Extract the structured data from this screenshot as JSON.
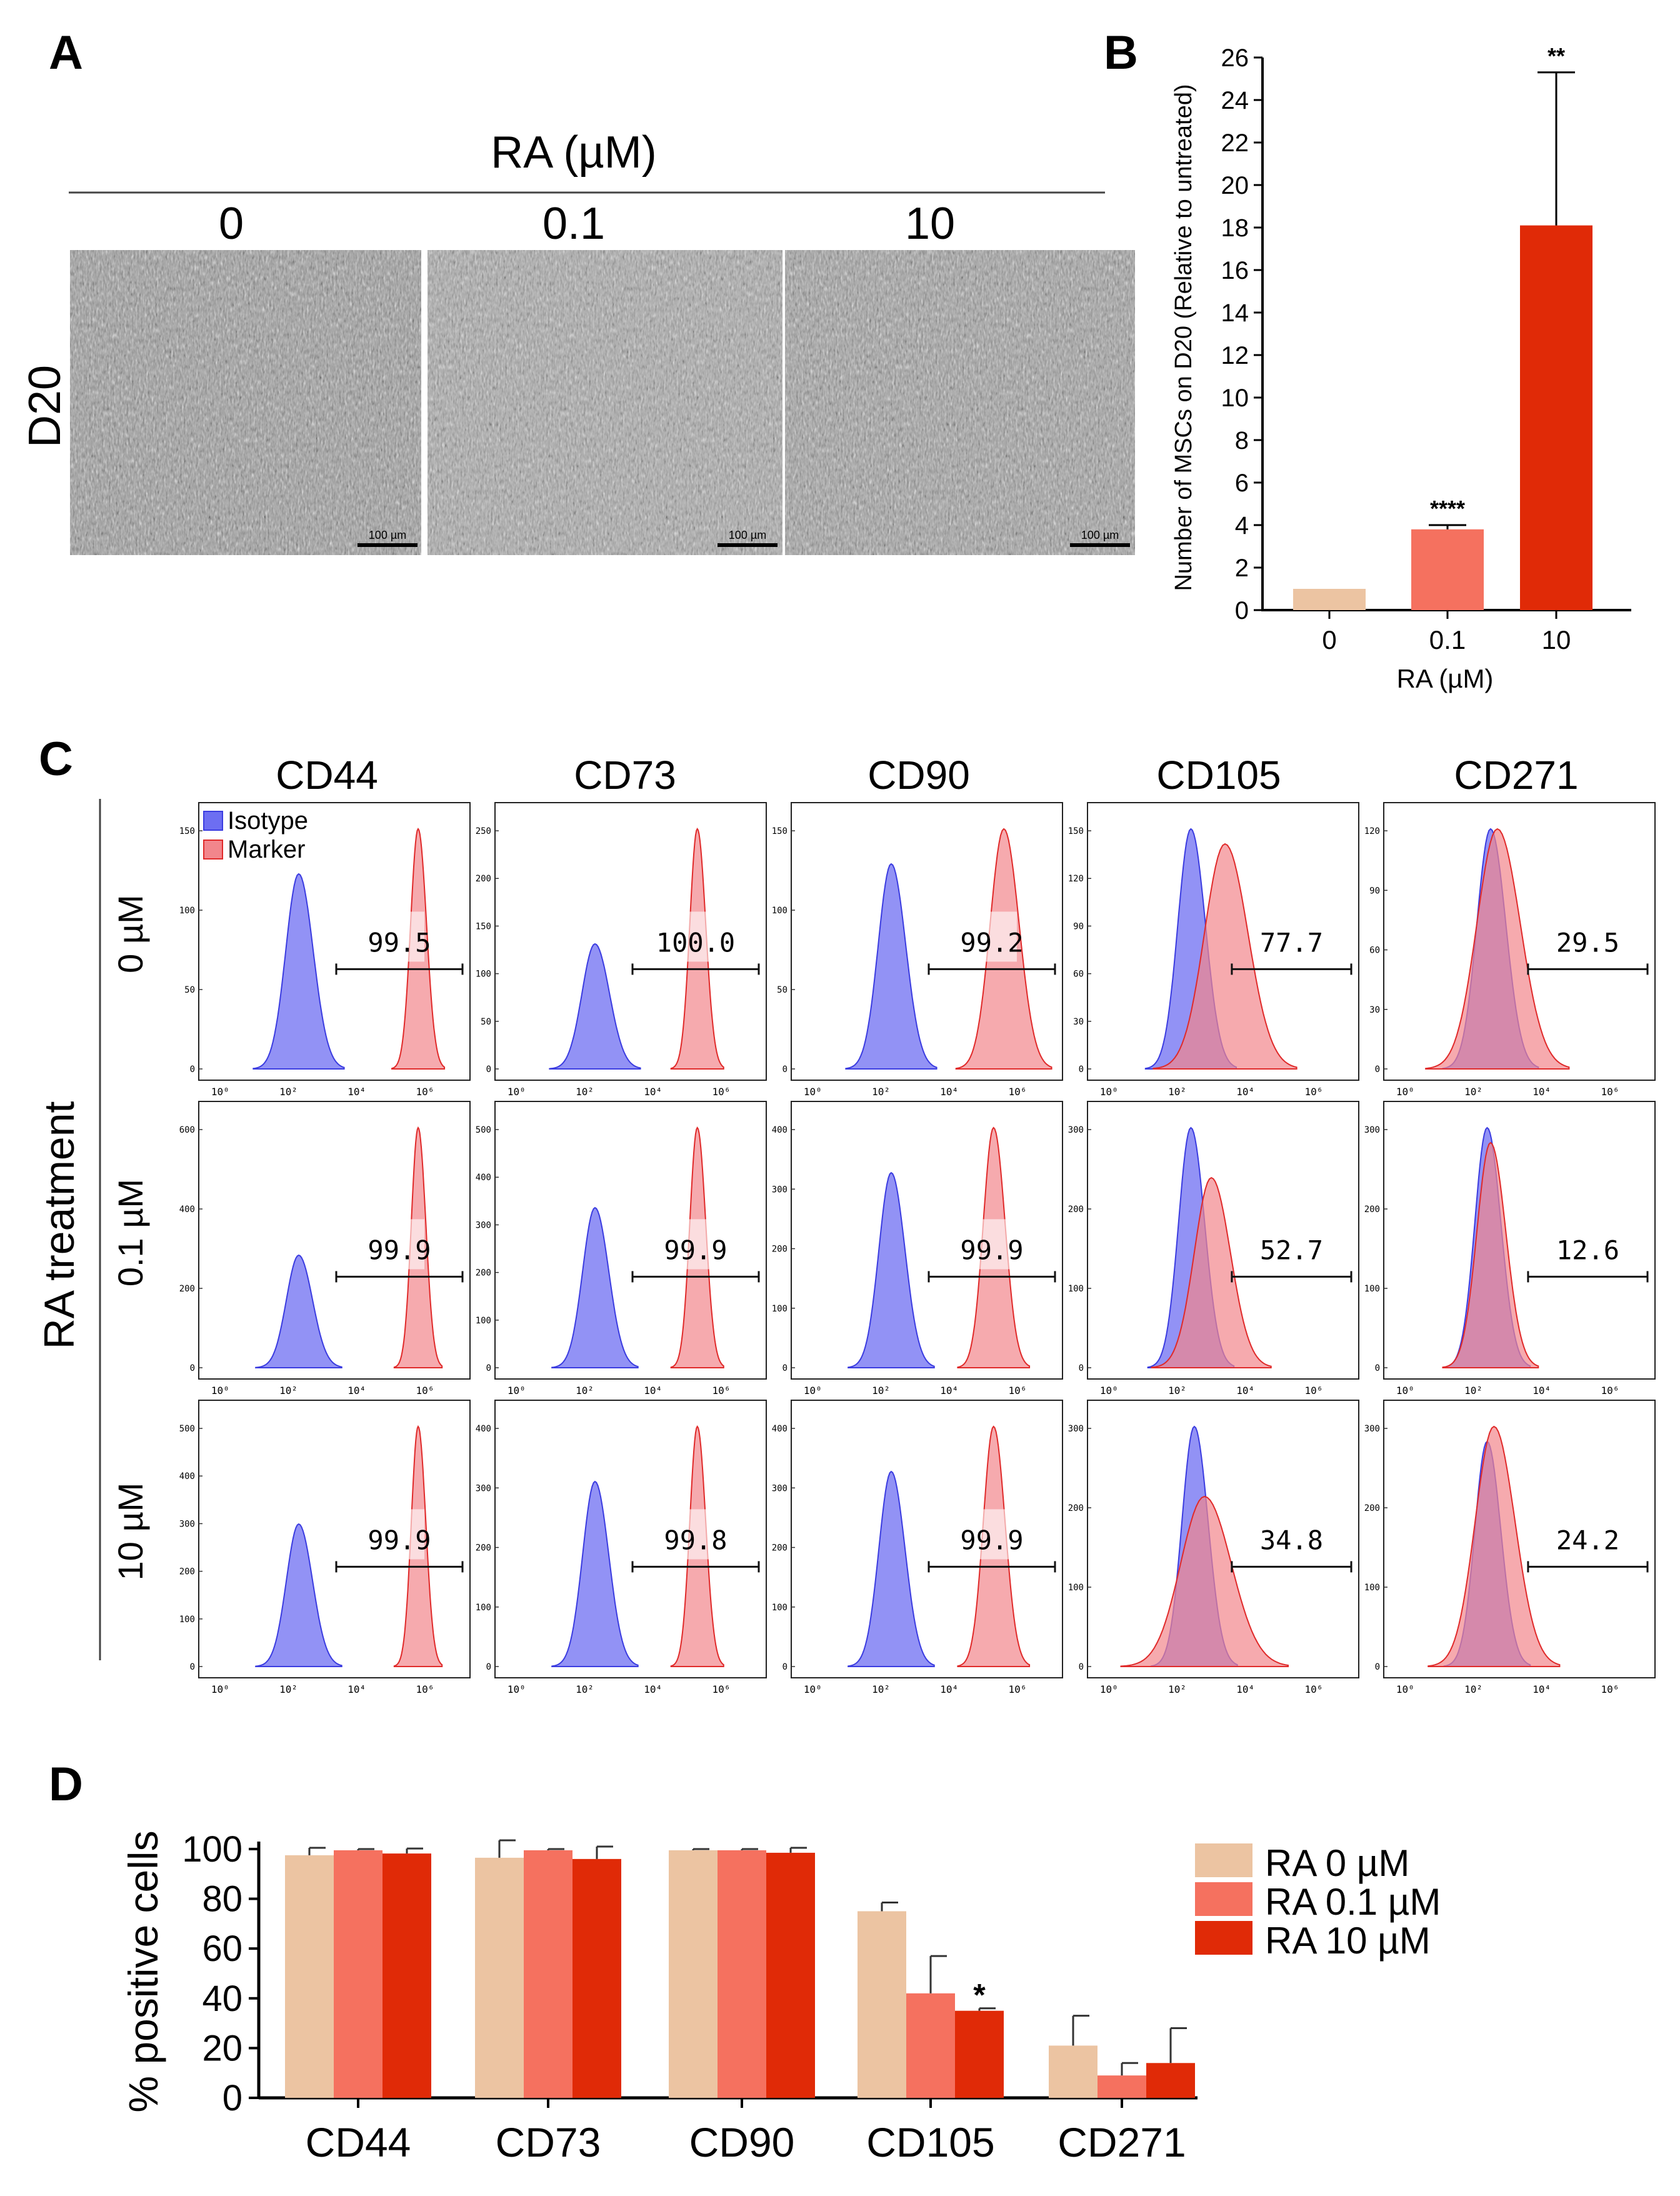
{
  "panels": {
    "a": "A",
    "b": "B",
    "c": "C",
    "d": "D"
  },
  "panel_a": {
    "header": "RA (µM)",
    "row_label": "D20",
    "columns": [
      "0",
      "0.1",
      "10"
    ],
    "scale_bar": "100 µm"
  },
  "colors": {
    "ra0": "#ecc4a2",
    "ra01": "#f5715f",
    "ra10": "#e02a07",
    "isotype": "#6d6ef2",
    "marker": "#f2868c"
  },
  "chart_data": [
    {
      "id": "B",
      "type": "bar",
      "categories": [
        "0",
        "0.1",
        "10"
      ],
      "values": [
        1,
        3.8,
        18.1
      ],
      "errors": [
        0,
        0.2,
        7.2
      ],
      "significance": [
        "",
        "****",
        "**"
      ],
      "ylabel": "Number of MSCs on D20 (Relative to untreated)",
      "xlabel": "RA (µM)",
      "ylim": [
        0,
        26
      ],
      "yticks": [
        "0",
        "2",
        "4",
        "6",
        "8",
        "10",
        "12",
        "14",
        "16",
        "18",
        "20",
        "22",
        "24",
        "26"
      ]
    },
    {
      "id": "C",
      "type": "histogram-grid",
      "markers": [
        "CD44",
        "CD73",
        "CD90",
        "CD105",
        "CD271"
      ],
      "rows": [
        "0 µM",
        "0.1 µM",
        "10 µM"
      ],
      "row_group_label": "RA treatment",
      "legend": [
        "Isotype",
        "Marker"
      ],
      "xtick_labels": [
        "10⁰",
        "10²",
        "10⁴",
        "10⁶"
      ],
      "yticks": [
        [
          [
            "0",
            "50",
            "100",
            "150"
          ],
          [
            "0",
            "50",
            "100",
            "150",
            "200",
            "250"
          ],
          [
            "0",
            "50",
            "100",
            "150"
          ],
          [
            "0",
            "30",
            "60",
            "90",
            "120",
            "150"
          ],
          [
            "0",
            "30",
            "60",
            "90",
            "120"
          ]
        ],
        [
          [
            "0",
            "200",
            "400",
            "600"
          ],
          [
            "0",
            "100",
            "200",
            "300",
            "400",
            "500"
          ],
          [
            "0",
            "100",
            "200",
            "300",
            "400"
          ],
          [
            "0",
            "100",
            "200",
            "300"
          ],
          [
            "0",
            "100",
            "200",
            "300"
          ]
        ],
        [
          [
            "0",
            "100",
            "200",
            "300",
            "400",
            "500"
          ],
          [
            "0",
            "100",
            "200",
            "300",
            "400"
          ],
          [
            "0",
            "100",
            "200",
            "300",
            "400"
          ],
          [
            "0",
            "100",
            "200",
            "300"
          ],
          [
            "0",
            "100",
            "200",
            "300"
          ]
        ]
      ],
      "percent_positive": [
        [
          "99.5",
          "100.0",
          "99.2",
          "77.7",
          "29.5"
        ],
        [
          "99.9",
          "99.9",
          "99.9",
          "52.7",
          "12.6"
        ],
        [
          "99.9",
          "99.8",
          "99.9",
          "34.8",
          "24.2"
        ]
      ]
    },
    {
      "id": "D",
      "type": "bar",
      "categories": [
        "CD44",
        "CD73",
        "CD90",
        "CD105",
        "CD271"
      ],
      "series": [
        {
          "name": "RA 0 µM",
          "values": [
            97.5,
            96.5,
            99.5,
            75,
            21
          ],
          "errors": [
            3,
            7,
            0.5,
            3.5,
            12
          ]
        },
        {
          "name": "RA 0.1 µM",
          "values": [
            99.5,
            99.5,
            99.5,
            42,
            9
          ],
          "errors": [
            0.5,
            0.5,
            0.5,
            15,
            5
          ]
        },
        {
          "name": "RA 10 µM",
          "values": [
            98.2,
            96,
            98.5,
            35,
            14
          ],
          "errors": [
            2,
            5,
            2,
            1,
            14
          ]
        }
      ],
      "significance": [
        "",
        "",
        "",
        "*",
        ""
      ],
      "significance_series": 2,
      "ylabel": "% positive cells",
      "ylim": [
        0,
        100
      ],
      "yticks": [
        "0",
        "20",
        "40",
        "60",
        "80",
        "100"
      ]
    }
  ]
}
